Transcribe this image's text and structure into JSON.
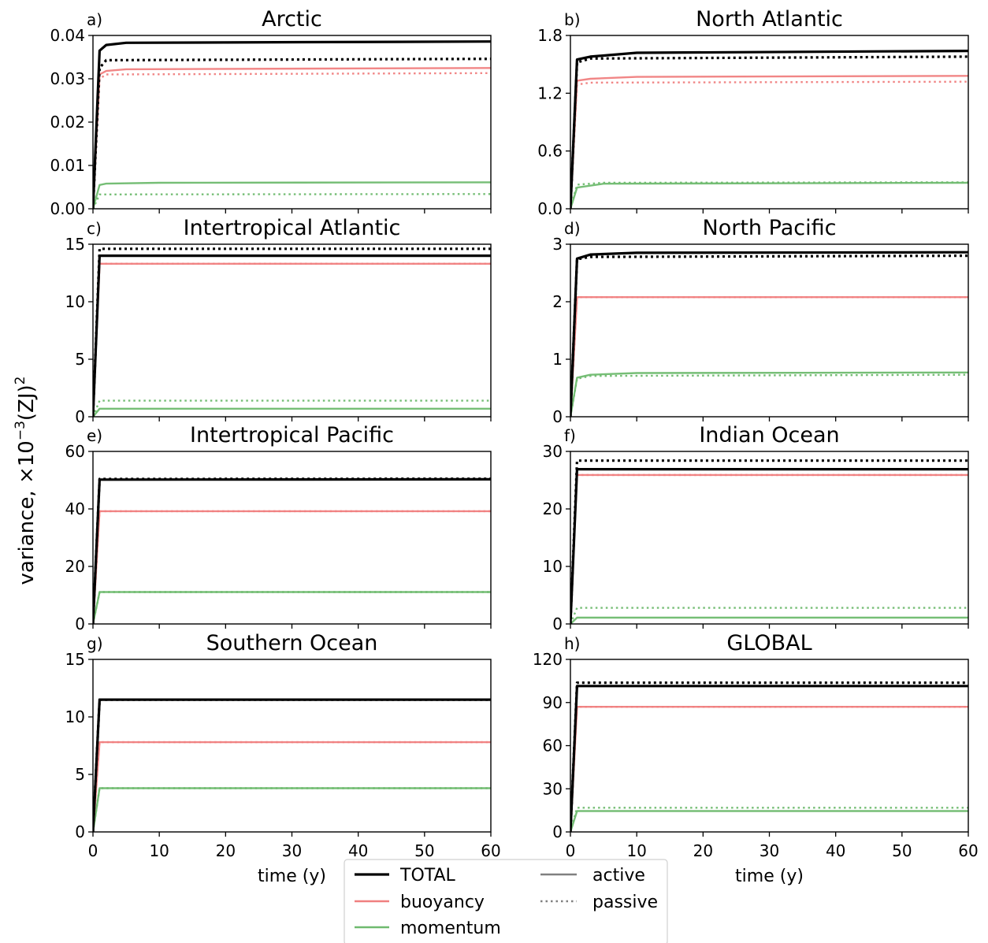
{
  "figure": {
    "ylabel_main": "variance, ×10",
    "ylabel_sup": "−3",
    "ylabel_tail": "(ZJ)",
    "ylabel_sup2": "2",
    "xlabel": "time (y)"
  },
  "legend": {
    "entries": [
      {
        "label": "TOTAL",
        "color": "#000000",
        "style": "solid"
      },
      {
        "label": "buoyancy",
        "color": "#f08080",
        "style": "solid"
      },
      {
        "label": "momentum",
        "color": "#6fba6f",
        "style": "solid"
      },
      {
        "label": "active",
        "color": "#808080",
        "style": "solid"
      },
      {
        "label": "passive",
        "color": "#808080",
        "style": "dotted"
      }
    ]
  },
  "chart_data": [
    {
      "type": "line",
      "panel": "a)",
      "title": "Arctic",
      "xlim": [
        0,
        60
      ],
      "ylim": [
        0,
        0.04
      ],
      "yticks": [
        "0.00",
        "0.01",
        "0.02",
        "0.03",
        "0.04"
      ],
      "xticks": [],
      "xlabel": "",
      "series": [
        {
          "group": "TOTAL",
          "kind": "active",
          "x": [
            0,
            1,
            2,
            5,
            60
          ],
          "y": [
            0,
            0.0365,
            0.0378,
            0.0383,
            0.0386
          ]
        },
        {
          "group": "TOTAL",
          "kind": "passive",
          "x": [
            0,
            1,
            2,
            60
          ],
          "y": [
            0,
            0.0325,
            0.0343,
            0.0346
          ]
        },
        {
          "group": "buoyancy",
          "kind": "active",
          "x": [
            0,
            1,
            2,
            5,
            60
          ],
          "y": [
            0,
            0.031,
            0.0318,
            0.0322,
            0.0325
          ]
        },
        {
          "group": "buoyancy",
          "kind": "passive",
          "x": [
            0,
            1,
            2,
            60
          ],
          "y": [
            0,
            0.03,
            0.031,
            0.0313
          ]
        },
        {
          "group": "momentum",
          "kind": "active",
          "x": [
            0,
            1,
            2,
            10,
            60
          ],
          "y": [
            0,
            0.0055,
            0.0058,
            0.006,
            0.0061
          ]
        },
        {
          "group": "momentum",
          "kind": "passive",
          "x": [
            0,
            1,
            60
          ],
          "y": [
            0,
            0.0033,
            0.0034
          ]
        }
      ]
    },
    {
      "type": "line",
      "panel": "b)",
      "title": "North Atlantic",
      "xlim": [
        0,
        60
      ],
      "ylim": [
        0,
        1.8
      ],
      "yticks": [
        "0.0",
        "0.6",
        "1.2",
        "1.8"
      ],
      "xticks": [],
      "xlabel": "",
      "series": [
        {
          "group": "TOTAL",
          "kind": "active",
          "x": [
            0,
            1,
            3,
            10,
            60
          ],
          "y": [
            0,
            1.55,
            1.58,
            1.62,
            1.64
          ]
        },
        {
          "group": "TOTAL",
          "kind": "passive",
          "x": [
            0,
            1,
            3,
            60
          ],
          "y": [
            0,
            1.52,
            1.56,
            1.58
          ]
        },
        {
          "group": "buoyancy",
          "kind": "active",
          "x": [
            0,
            1,
            3,
            10,
            60
          ],
          "y": [
            0,
            1.33,
            1.35,
            1.37,
            1.38
          ]
        },
        {
          "group": "buoyancy",
          "kind": "passive",
          "x": [
            0,
            1,
            3,
            60
          ],
          "y": [
            0,
            1.29,
            1.31,
            1.32
          ]
        },
        {
          "group": "momentum",
          "kind": "active",
          "x": [
            0,
            1,
            5,
            60
          ],
          "y": [
            0,
            0.22,
            0.26,
            0.27
          ]
        },
        {
          "group": "momentum",
          "kind": "passive",
          "x": [
            0,
            1,
            5,
            60
          ],
          "y": [
            0,
            0.25,
            0.27,
            0.275
          ]
        }
      ]
    },
    {
      "type": "line",
      "panel": "c)",
      "title": "Intertropical Atlantic",
      "xlim": [
        0,
        60
      ],
      "ylim": [
        0,
        15
      ],
      "yticks": [
        "0",
        "5",
        "10",
        "15"
      ],
      "xticks": [],
      "xlabel": "",
      "series": [
        {
          "group": "TOTAL",
          "kind": "active",
          "x": [
            0,
            1,
            60
          ],
          "y": [
            0,
            14.0,
            14.0
          ]
        },
        {
          "group": "TOTAL",
          "kind": "passive",
          "x": [
            0,
            1,
            60
          ],
          "y": [
            0,
            14.6,
            14.6
          ]
        },
        {
          "group": "buoyancy",
          "kind": "active",
          "x": [
            0,
            1,
            60
          ],
          "y": [
            0,
            13.3,
            13.3
          ]
        },
        {
          "group": "buoyancy",
          "kind": "passive",
          "x": [
            0,
            1,
            60
          ],
          "y": [
            0,
            13.3,
            13.3
          ]
        },
        {
          "group": "momentum",
          "kind": "active",
          "x": [
            0,
            1,
            60
          ],
          "y": [
            0,
            0.7,
            0.7
          ]
        },
        {
          "group": "momentum",
          "kind": "passive",
          "x": [
            0,
            1,
            60
          ],
          "y": [
            0,
            1.4,
            1.4
          ]
        }
      ]
    },
    {
      "type": "line",
      "panel": "d)",
      "title": "North Pacific",
      "xlim": [
        0,
        60
      ],
      "ylim": [
        0,
        3
      ],
      "yticks": [
        "0",
        "1",
        "2",
        "3"
      ],
      "xticks": [],
      "xlabel": "",
      "series": [
        {
          "group": "TOTAL",
          "kind": "active",
          "x": [
            0,
            1,
            3,
            10,
            60
          ],
          "y": [
            0,
            2.75,
            2.82,
            2.85,
            2.86
          ]
        },
        {
          "group": "TOTAL",
          "kind": "passive",
          "x": [
            0,
            1,
            3,
            60
          ],
          "y": [
            0,
            2.74,
            2.78,
            2.8
          ]
        },
        {
          "group": "buoyancy",
          "kind": "active",
          "x": [
            0,
            1,
            60
          ],
          "y": [
            0,
            2.08,
            2.08
          ]
        },
        {
          "group": "buoyancy",
          "kind": "passive",
          "x": [
            0,
            1,
            60
          ],
          "y": [
            0,
            2.08,
            2.08
          ]
        },
        {
          "group": "momentum",
          "kind": "active",
          "x": [
            0,
            1,
            3,
            10,
            60
          ],
          "y": [
            0,
            0.68,
            0.73,
            0.76,
            0.77
          ]
        },
        {
          "group": "momentum",
          "kind": "passive",
          "x": [
            0,
            1,
            3,
            60
          ],
          "y": [
            0,
            0.66,
            0.71,
            0.73
          ]
        }
      ]
    },
    {
      "type": "line",
      "panel": "e)",
      "title": "Intertropical Pacific",
      "xlim": [
        0,
        60
      ],
      "ylim": [
        0,
        60
      ],
      "yticks": [
        "0",
        "20",
        "40",
        "60"
      ],
      "xticks": [],
      "xlabel": "",
      "series": [
        {
          "group": "TOTAL",
          "kind": "active",
          "x": [
            0,
            1,
            60
          ],
          "y": [
            0,
            50.2,
            50.3
          ]
        },
        {
          "group": "TOTAL",
          "kind": "passive",
          "x": [
            0,
            1,
            60
          ],
          "y": [
            0,
            50.4,
            50.5
          ]
        },
        {
          "group": "buoyancy",
          "kind": "active",
          "x": [
            0,
            1,
            60
          ],
          "y": [
            0,
            39.2,
            39.2
          ]
        },
        {
          "group": "buoyancy",
          "kind": "passive",
          "x": [
            0,
            1,
            60
          ],
          "y": [
            0,
            39.2,
            39.2
          ]
        },
        {
          "group": "momentum",
          "kind": "active",
          "x": [
            0,
            1,
            60
          ],
          "y": [
            0,
            11.1,
            11.1
          ]
        },
        {
          "group": "momentum",
          "kind": "passive",
          "x": [
            0,
            1,
            60
          ],
          "y": [
            0,
            11.1,
            11.1
          ]
        }
      ]
    },
    {
      "type": "line",
      "panel": "f)",
      "title": "Indian Ocean",
      "xlim": [
        0,
        60
      ],
      "ylim": [
        0,
        30
      ],
      "yticks": [
        "0",
        "10",
        "20",
        "30"
      ],
      "xticks": [],
      "xlabel": "",
      "series": [
        {
          "group": "TOTAL",
          "kind": "active",
          "x": [
            0,
            1,
            60
          ],
          "y": [
            0,
            26.9,
            26.9
          ]
        },
        {
          "group": "TOTAL",
          "kind": "passive",
          "x": [
            0,
            1,
            60
          ],
          "y": [
            0,
            28.4,
            28.4
          ]
        },
        {
          "group": "buoyancy",
          "kind": "active",
          "x": [
            0,
            1,
            60
          ],
          "y": [
            0,
            25.9,
            25.9
          ]
        },
        {
          "group": "buoyancy",
          "kind": "passive",
          "x": [
            0,
            1,
            60
          ],
          "y": [
            0,
            25.9,
            25.9
          ]
        },
        {
          "group": "momentum",
          "kind": "active",
          "x": [
            0,
            1,
            60
          ],
          "y": [
            0,
            1.1,
            1.1
          ]
        },
        {
          "group": "momentum",
          "kind": "passive",
          "x": [
            0,
            1,
            60
          ],
          "y": [
            0,
            2.8,
            2.8
          ]
        }
      ]
    },
    {
      "type": "line",
      "panel": "g)",
      "title": "Southern Ocean",
      "xlim": [
        0,
        60
      ],
      "ylim": [
        0,
        15
      ],
      "yticks": [
        "0",
        "5",
        "10",
        "15"
      ],
      "xticks": [
        "0",
        "10",
        "20",
        "30",
        "40",
        "50",
        "60"
      ],
      "xlabel": "time (y)",
      "series": [
        {
          "group": "TOTAL",
          "kind": "active",
          "x": [
            0,
            1,
            60
          ],
          "y": [
            0,
            11.5,
            11.5
          ]
        },
        {
          "group": "TOTAL",
          "kind": "passive",
          "x": [
            0,
            1,
            60
          ],
          "y": [
            0,
            11.5,
            11.5
          ]
        },
        {
          "group": "buoyancy",
          "kind": "active",
          "x": [
            0,
            1,
            60
          ],
          "y": [
            0,
            7.8,
            7.8
          ]
        },
        {
          "group": "buoyancy",
          "kind": "passive",
          "x": [
            0,
            1,
            60
          ],
          "y": [
            0,
            7.8,
            7.8
          ]
        },
        {
          "group": "momentum",
          "kind": "active",
          "x": [
            0,
            1,
            60
          ],
          "y": [
            0,
            3.8,
            3.8
          ]
        },
        {
          "group": "momentum",
          "kind": "passive",
          "x": [
            0,
            1,
            60
          ],
          "y": [
            0,
            3.8,
            3.8
          ]
        }
      ]
    },
    {
      "type": "line",
      "panel": "h)",
      "title": "GLOBAL",
      "xlim": [
        0,
        60
      ],
      "ylim": [
        0,
        120
      ],
      "yticks": [
        "0",
        "30",
        "60",
        "90",
        "120"
      ],
      "xticks": [
        "0",
        "10",
        "20",
        "30",
        "40",
        "50",
        "60"
      ],
      "xlabel": "time (y)",
      "series": [
        {
          "group": "TOTAL",
          "kind": "active",
          "x": [
            0,
            1,
            60
          ],
          "y": [
            0,
            101.5,
            101.5
          ]
        },
        {
          "group": "TOTAL",
          "kind": "passive",
          "x": [
            0,
            1,
            60
          ],
          "y": [
            0,
            103.8,
            103.8
          ]
        },
        {
          "group": "buoyancy",
          "kind": "active",
          "x": [
            0,
            1,
            60
          ],
          "y": [
            0,
            87.0,
            87.0
          ]
        },
        {
          "group": "buoyancy",
          "kind": "passive",
          "x": [
            0,
            1,
            60
          ],
          "y": [
            0,
            87.0,
            87.0
          ]
        },
        {
          "group": "momentum",
          "kind": "active",
          "x": [
            0,
            1,
            60
          ],
          "y": [
            0,
            14.5,
            14.5
          ]
        },
        {
          "group": "momentum",
          "kind": "passive",
          "x": [
            0,
            1,
            60
          ],
          "y": [
            0,
            16.8,
            16.8
          ]
        }
      ]
    }
  ]
}
